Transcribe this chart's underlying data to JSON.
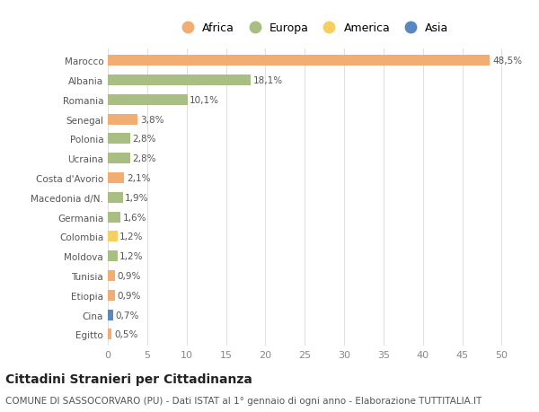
{
  "title": "Cittadini Stranieri per Cittadinanza",
  "subtitle": "COMUNE DI SASSOCORVARO (PU) - Dati ISTAT al 1° gennaio di ogni anno - Elaborazione TUTTITALIA.IT",
  "countries": [
    "Egitto",
    "Cina",
    "Etiopia",
    "Tunisia",
    "Moldova",
    "Colombia",
    "Germania",
    "Macedonia d/N.",
    "Costa d'Avorio",
    "Ucraina",
    "Polonia",
    "Senegal",
    "Romania",
    "Albania",
    "Marocco"
  ],
  "values": [
    0.5,
    0.7,
    0.9,
    0.9,
    1.2,
    1.2,
    1.6,
    1.9,
    2.1,
    2.8,
    2.8,
    3.8,
    10.1,
    18.1,
    48.5
  ],
  "labels": [
    "0,5%",
    "0,7%",
    "0,9%",
    "0,9%",
    "1,2%",
    "1,2%",
    "1,6%",
    "1,9%",
    "2,1%",
    "2,8%",
    "2,8%",
    "3,8%",
    "10,1%",
    "18,1%",
    "48,5%"
  ],
  "continents": [
    "Africa",
    "Asia",
    "Africa",
    "Africa",
    "Europa",
    "America",
    "Europa",
    "Europa",
    "Africa",
    "Europa",
    "Europa",
    "Africa",
    "Europa",
    "Europa",
    "Africa"
  ],
  "colors": {
    "Africa": "#F2AE72",
    "Europa": "#A8BE82",
    "America": "#F5D060",
    "Asia": "#5888C0"
  },
  "legend_order": [
    "Africa",
    "Europa",
    "America",
    "Asia"
  ],
  "legend_colors": [
    "#F2AE72",
    "#A8BE82",
    "#F5D060",
    "#5888C0"
  ],
  "xlim": [
    0,
    52
  ],
  "xticks": [
    0,
    5,
    10,
    15,
    20,
    25,
    30,
    35,
    40,
    45,
    50
  ],
  "background_color": "#ffffff",
  "grid_color": "#e0e0e0",
  "bar_height": 0.55,
  "title_fontsize": 10,
  "subtitle_fontsize": 7.5,
  "label_fontsize": 7.5,
  "ytick_fontsize": 7.5,
  "xtick_fontsize": 8
}
